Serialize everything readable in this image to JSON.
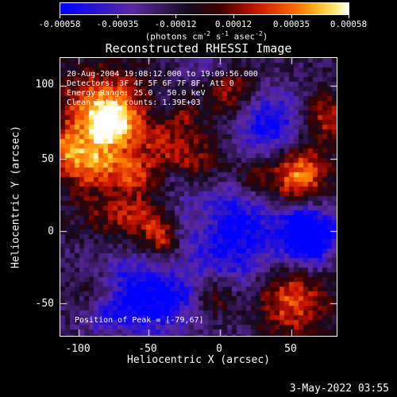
{
  "colorbar": {
    "tick_labels": [
      "-0.00058",
      "-0.00035",
      "-0.00012",
      "0.00012",
      "0.00035",
      "0.00058"
    ],
    "units_prefix": "(photons cm",
    "units_exp1": "-2",
    "units_mid": " s",
    "units_exp2": "-1",
    "units_mid2": " asec",
    "units_exp3": "-2",
    "units_suffix": ")"
  },
  "title": "Reconstructed RHESSI Image",
  "annotations": {
    "line1": "20-Aug-2004 19:08:12.000 to 19:09:56.000",
    "line2": "Detectors: 3F 4F 5F 6F 7F 8F, Att 0",
    "line3": "Energy Range: 25.0 - 50.0 keV",
    "line4": "Clean    Total counts: 1.39E+03",
    "peak": "Position of Peak = [-79,67]"
  },
  "axes": {
    "xlabel": "Heliocentric X (arcsec)",
    "ylabel": "Heliocentric Y (arcsec)",
    "xticks": [
      "-100",
      "-50",
      "0",
      "50"
    ],
    "yticks": [
      "100",
      "50",
      "0",
      "-50"
    ]
  },
  "footer_date": "3-May-2022 03:55",
  "colors": {
    "background": "#000000",
    "text": "#ffffff"
  }
}
